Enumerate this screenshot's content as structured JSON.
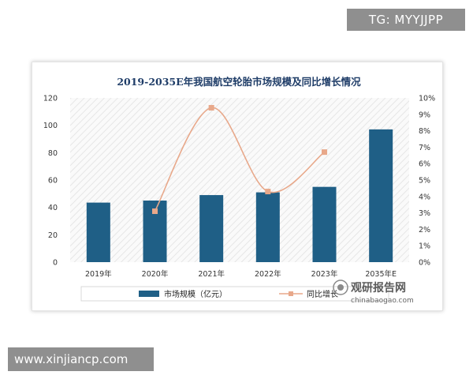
{
  "overlay": {
    "top_right_label": "TG: MYYJJPP",
    "bottom_left_label": "www.xinjiancp.com"
  },
  "watermark": {
    "brand_cn": "观研报告网",
    "brand_en": "chinabaogao.com"
  },
  "colors": {
    "bar": "#1f5f86",
    "line": "#e8a88a",
    "marker": "#e8a88a",
    "title": "#1f3d68"
  },
  "chart_data": {
    "type": "bar",
    "title": "2019-2035E年我国航空轮胎市场规模及同比增长情况",
    "categories": [
      "2019年",
      "2020年",
      "2021年",
      "2022年",
      "2023年",
      "2035年E"
    ],
    "series": [
      {
        "name": "市场规模（亿元）",
        "type": "bar",
        "axis": "left",
        "values": [
          43.5,
          45,
          49,
          51,
          55,
          97
        ]
      },
      {
        "name": "同比增长",
        "type": "line",
        "axis": "right",
        "values": [
          null,
          3.1,
          9.4,
          4.3,
          6.7,
          null
        ]
      }
    ],
    "y_left": {
      "ylim": [
        0,
        120
      ],
      "ticks": [
        "0",
        "20",
        "40",
        "60",
        "80",
        "100",
        "120"
      ]
    },
    "y_right": {
      "ylim": [
        0,
        10
      ],
      "ticks": [
        "0%",
        "1%",
        "2%",
        "3%",
        "4%",
        "5%",
        "6%",
        "7%",
        "8%",
        "9%",
        "10%"
      ]
    },
    "grid": false,
    "legend_position": "bottom"
  }
}
